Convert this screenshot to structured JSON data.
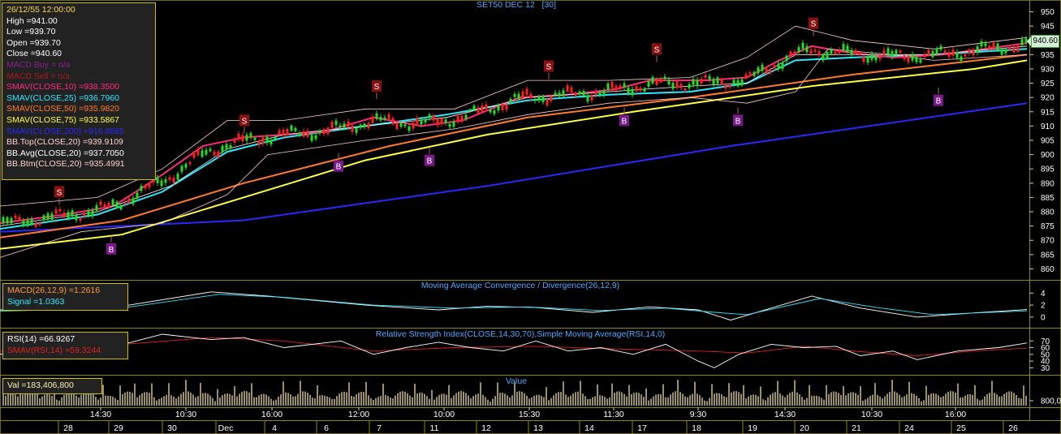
{
  "chart_data": [
    {
      "type": "candlestick",
      "title": "SET50 DEC 12",
      "interval": "[30]",
      "ylim": [
        857,
        953
      ],
      "y_ticks": [
        860,
        865,
        870,
        875,
        880,
        885,
        890,
        895,
        900,
        905,
        910,
        915,
        920,
        925,
        930,
        935,
        940,
        945,
        950
      ],
      "last_price_label": "940.60",
      "grid": false,
      "crosshair_readout": {
        "datetime": "26/12/55 12:00:00",
        "high": "High  =941.00",
        "low": "Low   =939.70",
        "open": "Open  =939.70",
        "close": "Close  =940.60"
      },
      "indicator_labels": [
        {
          "text": "MACD Buy   = n/a",
          "color": "#8a2090"
        },
        {
          "text": "MACD Sell   = n/a",
          "color": "#b01818"
        },
        {
          "text": "SMAV(CLOSE,10)   =938.3500",
          "color": "#ff2a7a"
        },
        {
          "text": "SMAV(CLOSE,25)   =936.7960",
          "color": "#2ee8ff"
        },
        {
          "text": "SMAV(CLOSE,50)   =935.9820",
          "color": "#ff7a2a"
        },
        {
          "text": "SMAV(CLOSE,75)   =933.5867",
          "color": "#ffff40"
        },
        {
          "text": "SMAV(CLOSE,200)   =916.8885",
          "color": "#2828ff"
        },
        {
          "text": "BB.Top(CLOSE,20)   =939.9109",
          "color": "#ffd0d0"
        },
        {
          "text": "BB.Avg(CLOSE,20)   =937.7050",
          "color": "#ffffff"
        },
        {
          "text": "BB.Btm(CLOSE,20)   =935.4991",
          "color": "#ffd0d0"
        }
      ],
      "series": [
        {
          "name": "SMAV(CLOSE,200)",
          "color": "#2828ff",
          "points": [
            [
              0,
              873
            ],
            [
              300,
              877
            ],
            [
              600,
              889
            ],
            [
              900,
              903
            ],
            [
              1265,
              918
            ]
          ]
        },
        {
          "name": "SMAV(CLOSE,75)",
          "color": "#ffff40",
          "points": [
            [
              0,
              867
            ],
            [
              150,
              872
            ],
            [
              300,
              885
            ],
            [
              450,
              898
            ],
            [
              600,
              907
            ],
            [
              780,
              915
            ],
            [
              1000,
              924
            ],
            [
              1200,
              930
            ],
            [
              1265,
              933
            ]
          ]
        },
        {
          "name": "SMAV(CLOSE,50)",
          "color": "#ff7a2a",
          "points": [
            [
              0,
              871
            ],
            [
              150,
              877
            ],
            [
              300,
              890
            ],
            [
              480,
              903
            ],
            [
              650,
              913
            ],
            [
              850,
              920
            ],
            [
              1050,
              928
            ],
            [
              1265,
              935
            ]
          ]
        },
        {
          "name": "SMAV(CLOSE,25)",
          "color": "#2ee8ff",
          "points": [
            [
              0,
              874
            ],
            [
              120,
              879
            ],
            [
              200,
              887
            ],
            [
              280,
              901
            ],
            [
              350,
              906
            ],
            [
              450,
              910
            ],
            [
              550,
              914
            ],
            [
              650,
              919
            ],
            [
              750,
              921
            ],
            [
              850,
              922
            ],
            [
              920,
              925
            ],
            [
              980,
              933
            ],
            [
              1050,
              934
            ],
            [
              1150,
              935
            ],
            [
              1265,
              937
            ]
          ]
        },
        {
          "name": "SMAV(CLOSE,10)",
          "color": "#ff2a7a",
          "points": [
            [
              0,
              876
            ],
            [
              80,
              879
            ],
            [
              140,
              882
            ],
            [
              200,
              893
            ],
            [
              250,
              903
            ],
            [
              300,
              906
            ],
            [
              350,
              907
            ],
            [
              400,
              908
            ],
            [
              460,
              913
            ],
            [
              520,
              910
            ],
            [
              570,
              912
            ],
            [
              640,
              920
            ],
            [
              700,
              921
            ],
            [
              760,
              923
            ],
            [
              800,
              926
            ],
            [
              870,
              926
            ],
            [
              920,
              927
            ],
            [
              960,
              933
            ],
            [
              1000,
              938
            ],
            [
              1040,
              936
            ],
            [
              1100,
              934
            ],
            [
              1160,
              935
            ],
            [
              1265,
              939
            ]
          ]
        },
        {
          "name": "BB.Avg(CLOSE,20)",
          "color": "#ffffff",
          "points": [
            [
              0,
              875
            ],
            [
              120,
              880
            ],
            [
              210,
              889
            ],
            [
              280,
              902
            ],
            [
              350,
              907
            ],
            [
              450,
              910
            ],
            [
              550,
              913
            ],
            [
              650,
              920
            ],
            [
              750,
              922
            ],
            [
              850,
              924
            ],
            [
              920,
              925
            ],
            [
              980,
              935
            ],
            [
              1050,
              935
            ],
            [
              1150,
              935
            ],
            [
              1265,
              938
            ]
          ]
        },
        {
          "name": "BB.Top(CLOSE,20)",
          "color": "#ffd0d0",
          "points": [
            [
              0,
              882
            ],
            [
              120,
              885
            ],
            [
              200,
              895
            ],
            [
              280,
              912
            ],
            [
              350,
              912
            ],
            [
              450,
              916
            ],
            [
              560,
              916
            ],
            [
              650,
              926
            ],
            [
              750,
              926
            ],
            [
              850,
              927
            ],
            [
              920,
              934
            ],
            [
              980,
              945
            ],
            [
              1050,
              940
            ],
            [
              1150,
              937
            ],
            [
              1265,
              941
            ]
          ]
        },
        {
          "name": "BB.Btm(CLOSE,20)",
          "color": "#ffd0d0",
          "points": [
            [
              0,
              864
            ],
            [
              100,
              873
            ],
            [
              200,
              876
            ],
            [
              280,
              886
            ],
            [
              330,
              900
            ],
            [
              450,
              905
            ],
            [
              560,
              909
            ],
            [
              650,
              914
            ],
            [
              750,
              918
            ],
            [
              850,
              920
            ],
            [
              920,
              918
            ],
            [
              980,
              922
            ],
            [
              1020,
              937
            ],
            [
              1100,
              935
            ],
            [
              1150,
              933
            ],
            [
              1265,
              935
            ]
          ]
        }
      ],
      "signals": [
        {
          "label": "S",
          "x": 73,
          "y": 887
        },
        {
          "label": "B",
          "x": 137,
          "y": 867
        },
        {
          "label": "S",
          "x": 301,
          "y": 912
        },
        {
          "label": "B",
          "x": 417,
          "y": 896
        },
        {
          "label": "S",
          "x": 464,
          "y": 924
        },
        {
          "label": "B",
          "x": 529,
          "y": 898
        },
        {
          "label": "S",
          "x": 676,
          "y": 931
        },
        {
          "label": "B",
          "x": 769,
          "y": 912
        },
        {
          "label": "S",
          "x": 809,
          "y": 937
        },
        {
          "label": "B",
          "x": 909,
          "y": 912
        },
        {
          "label": "S",
          "x": 1002,
          "y": 946
        },
        {
          "label": "B",
          "x": 1156,
          "y": 919
        }
      ]
    },
    {
      "type": "line",
      "title": "Moving Average Convergence / Divergence(26,12,9)",
      "ylim": [
        -1.5,
        5.8
      ],
      "y_ticks": [
        0,
        2,
        4
      ],
      "legend": [
        "MACD(26,12,9)   =1.2616",
        "Signal   =1.0363"
      ],
      "series": [
        {
          "name": "MACD(26,12,9)",
          "color": "#ffffff",
          "points": [
            [
              0,
              1.2
            ],
            [
              150,
              1.8
            ],
            [
              260,
              4.2
            ],
            [
              330,
              3.5
            ],
            [
              450,
              2.0
            ],
            [
              540,
              1.2
            ],
            [
              600,
              1.8
            ],
            [
              660,
              1.6
            ],
            [
              730,
              0.8
            ],
            [
              800,
              1.7
            ],
            [
              860,
              1.2
            ],
            [
              900,
              -0.5
            ],
            [
              1000,
              3.5
            ],
            [
              1060,
              1.5
            ],
            [
              1130,
              0.0
            ],
            [
              1200,
              0.7
            ],
            [
              1265,
              1.26
            ]
          ]
        },
        {
          "name": "Signal",
          "color": "#2ee8ff",
          "points": [
            [
              0,
              1.0
            ],
            [
              150,
              1.5
            ],
            [
              270,
              3.8
            ],
            [
              350,
              3.3
            ],
            [
              460,
              2.0
            ],
            [
              560,
              1.5
            ],
            [
              650,
              1.7
            ],
            [
              740,
              1.1
            ],
            [
              820,
              1.5
            ],
            [
              880,
              0.8
            ],
            [
              920,
              0.4
            ],
            [
              1010,
              3.1
            ],
            [
              1080,
              1.6
            ],
            [
              1150,
              0.4
            ],
            [
              1265,
              1.04
            ]
          ]
        }
      ]
    },
    {
      "type": "line",
      "title": "Relative Strength Index(CLOSE,14,30,70),Simple Moving Average(RSI,14,0)",
      "ylim": [
        22,
        86
      ],
      "y_ticks": [
        30,
        40,
        50,
        60,
        70
      ],
      "legend": [
        "RSI(14)   =66.9267",
        "SMAV(RSI,14)   =59.3244"
      ],
      "series": [
        {
          "name": "SMAV(RSI,14)",
          "color": "#e02020",
          "points": [
            [
              0,
              55
            ],
            [
              100,
              60
            ],
            [
              260,
              75
            ],
            [
              350,
              70
            ],
            [
              460,
              55
            ],
            [
              560,
              60
            ],
            [
              660,
              62
            ],
            [
              760,
              58
            ],
            [
              860,
              55
            ],
            [
              920,
              52
            ],
            [
              990,
              62
            ],
            [
              1060,
              54
            ],
            [
              1130,
              48
            ],
            [
              1200,
              55
            ],
            [
              1265,
              59.3
            ]
          ]
        },
        {
          "name": "RSI(14)",
          "color": "#ffffff",
          "points": [
            [
              0,
              50
            ],
            [
              60,
              65
            ],
            [
              120,
              55
            ],
            [
              200,
              80
            ],
            [
              260,
              72
            ],
            [
              300,
              75
            ],
            [
              350,
              60
            ],
            [
              420,
              70
            ],
            [
              460,
              50
            ],
            [
              500,
              60
            ],
            [
              540,
              68
            ],
            [
              580,
              60
            ],
            [
              620,
              55
            ],
            [
              660,
              70
            ],
            [
              700,
              55
            ],
            [
              740,
              60
            ],
            [
              780,
              50
            ],
            [
              820,
              65
            ],
            [
              860,
              40
            ],
            [
              880,
              30
            ],
            [
              910,
              50
            ],
            [
              950,
              65
            ],
            [
              990,
              60
            ],
            [
              1030,
              62
            ],
            [
              1060,
              48
            ],
            [
              1100,
              55
            ],
            [
              1130,
              42
            ],
            [
              1180,
              55
            ],
            [
              1230,
              60
            ],
            [
              1265,
              66.9
            ]
          ]
        }
      ]
    },
    {
      "type": "bar",
      "title": "Value",
      "legend": [
        "Val   =183,406,800"
      ],
      "y_tick_label": "800,0",
      "color": "#fff0b0"
    }
  ],
  "x_axis": {
    "time_labels": [
      {
        "x": 124,
        "label": "14:30"
      },
      {
        "x": 229,
        "label": "10:30"
      },
      {
        "x": 335,
        "label": "16:00"
      },
      {
        "x": 442,
        "label": "12:00"
      },
      {
        "x": 547,
        "label": "10:00"
      },
      {
        "x": 652,
        "label": "15:30"
      },
      {
        "x": 756,
        "label": "11:30"
      },
      {
        "x": 860,
        "label": "9:30"
      },
      {
        "x": 967,
        "label": "14:30"
      },
      {
        "x": 1074,
        "label": "10:30"
      },
      {
        "x": 1177,
        "label": "16:00"
      }
    ],
    "date_labels": [
      {
        "x": 84,
        "label": "28"
      },
      {
        "x": 146,
        "label": "29"
      },
      {
        "x": 212,
        "label": "30"
      },
      {
        "x": 278,
        "label": "Dec"
      },
      {
        "x": 338,
        "label": "4"
      },
      {
        "x": 402,
        "label": "6"
      },
      {
        "x": 467,
        "label": "7"
      },
      {
        "x": 535,
        "label": "11"
      },
      {
        "x": 599,
        "label": "12"
      },
      {
        "x": 663,
        "label": "13"
      },
      {
        "x": 726,
        "label": "14"
      },
      {
        "x": 791,
        "label": "17"
      },
      {
        "x": 858,
        "label": "18"
      },
      {
        "x": 927,
        "label": "19"
      },
      {
        "x": 991,
        "label": "20"
      },
      {
        "x": 1055,
        "label": "21"
      },
      {
        "x": 1120,
        "label": "24"
      },
      {
        "x": 1184,
        "label": "25"
      },
      {
        "x": 1248,
        "label": "26"
      }
    ]
  }
}
